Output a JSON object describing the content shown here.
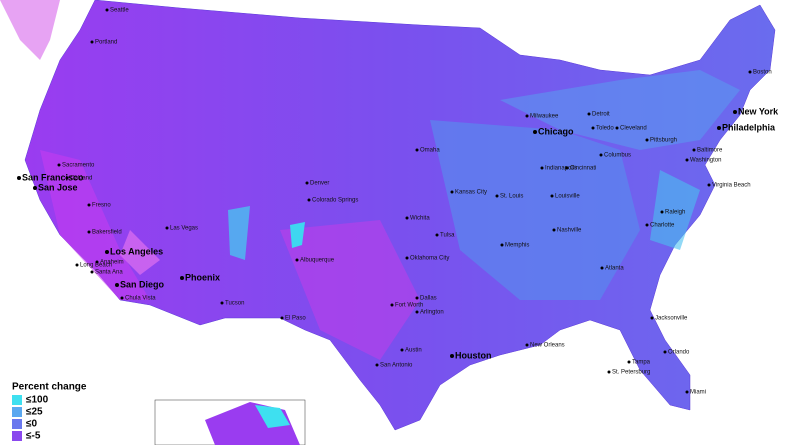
{
  "legend": {
    "title": "Percent change",
    "items": [
      {
        "label": "≤100",
        "color": "#3ee0f0"
      },
      {
        "label": "≤25",
        "color": "#5aa8f0"
      },
      {
        "label": "≤0",
        "color": "#6a78ee"
      },
      {
        "label": "≤-5",
        "color": "#8a48ee"
      }
    ]
  },
  "cities": {
    "major": [
      "New York",
      "Philadelphia",
      "Chicago",
      "Houston",
      "Los Angeles",
      "San Jose",
      "San Diego",
      "Phoenix",
      "San Francisco"
    ],
    "minor": [
      "Boston",
      "Milwaukee",
      "Detroit",
      "Toledo",
      "Cleveland",
      "Pittsburgh",
      "Baltimore",
      "Washington",
      "Columbus",
      "Cincinnati",
      "Indianapolis",
      "Louisville",
      "St. Louis",
      "Kansas City",
      "Virginia Beach",
      "Nashville",
      "Atlanta",
      "Charlotte",
      "Raleigh",
      "Jacksonville",
      "Orlando",
      "Tampa",
      "St. Petersburg",
      "Miami",
      "New Orleans",
      "San Antonio",
      "Austin",
      "Dallas",
      "Fort Worth",
      "Arlington",
      "Oklahoma City",
      "Tulsa",
      "Wichita",
      "Memphis",
      "El Paso",
      "Albuquerque",
      "Tucson",
      "Las Vegas",
      "Long Beach",
      "Anaheim",
      "Santa Ana",
      "Chula Vista",
      "Oakland",
      "Sacramento",
      "Fresno",
      "Bakersfield",
      "Denver",
      "Colorado Springs",
      "Omaha",
      "Seattle",
      "Portland"
    ]
  }
}
